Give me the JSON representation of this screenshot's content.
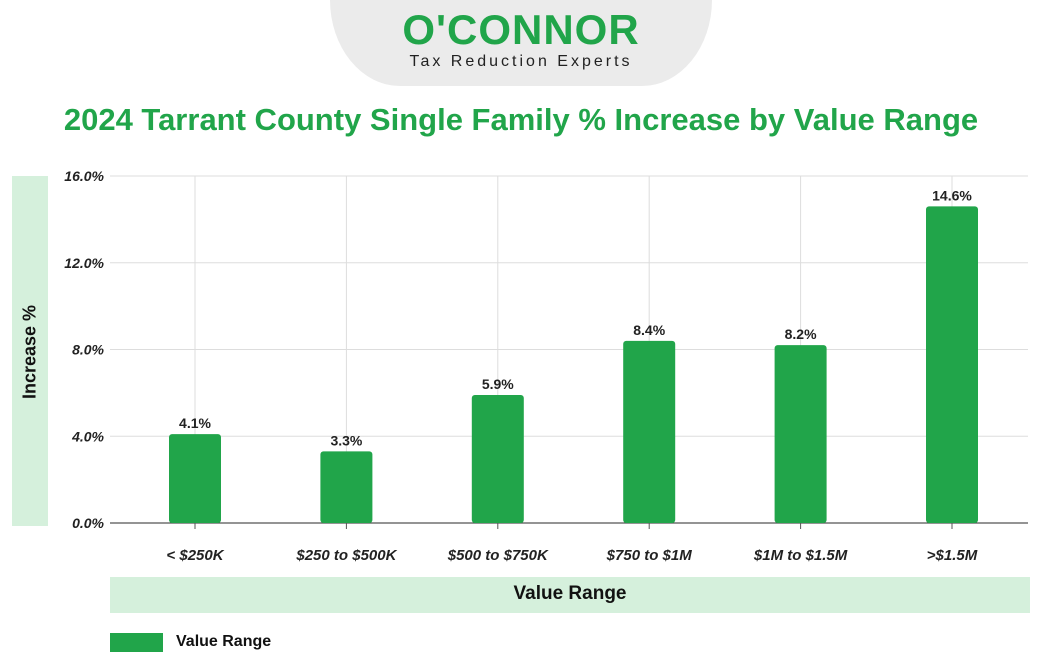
{
  "brand": {
    "name": "O'CONNOR",
    "tagline": "Tax Reduction Experts"
  },
  "colors": {
    "brand_green": "#21a54a",
    "band_green": "#d5f0dc",
    "grid": "#dddddd",
    "axis": "#555555"
  },
  "chart_data": {
    "type": "bar",
    "title": "2024 Tarrant County Single Family % Increase by Value Range",
    "xlabel": "Value Range",
    "ylabel": "Increase %",
    "categories": [
      "< $250K",
      "$250 to $500K",
      "$500 to $750K",
      "$750 to $1M",
      "$1M to $1.5M",
      ">$1.5M"
    ],
    "series": [
      {
        "name": "Value Range",
        "values": [
          4.1,
          3.3,
          5.9,
          8.4,
          8.2,
          14.6
        ]
      }
    ],
    "data_labels": [
      "4.1%",
      "3.3%",
      "5.9%",
      "8.4%",
      "8.2%",
      "14.6%"
    ],
    "ylim": [
      0,
      16
    ],
    "yticks": [
      0,
      4,
      8,
      12,
      16
    ],
    "ytick_labels": [
      "0.0%",
      "4.0%",
      "8.0%",
      "12.0%",
      "16.0%"
    ],
    "grid": true,
    "legend_position": "bottom-left"
  }
}
